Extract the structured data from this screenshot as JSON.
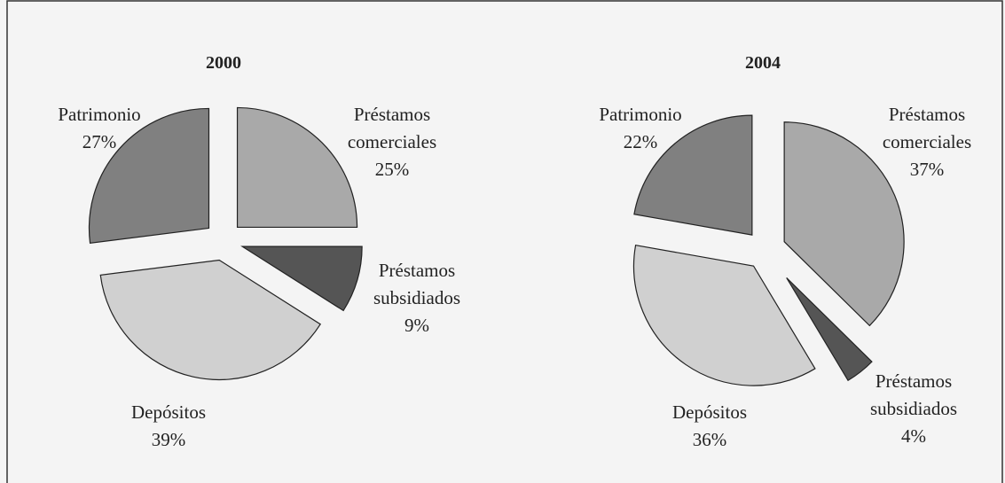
{
  "chart_data": [
    {
      "type": "pie",
      "title": "2000",
      "categories": [
        "Préstamos comerciales",
        "Préstamos subsidiados",
        "Depósitos",
        "Patrimonio"
      ],
      "values": [
        25,
        9,
        39,
        27
      ],
      "value_labels": [
        "25%",
        "9%",
        "39%",
        "27%"
      ],
      "colors": [
        "#a9a9a9",
        "#555555",
        "#d0d0d0",
        "#808080"
      ]
    },
    {
      "type": "pie",
      "title": "2004",
      "categories": [
        "Préstamos comerciales",
        "Préstamos subsidiados",
        "Depósitos",
        "Patrimonio"
      ],
      "values": [
        37,
        4,
        36,
        22
      ],
      "value_labels": [
        "37%",
        "4%",
        "36%",
        "22%"
      ],
      "colors": [
        "#a9a9a9",
        "#555555",
        "#d0d0d0",
        "#808080"
      ]
    }
  ]
}
